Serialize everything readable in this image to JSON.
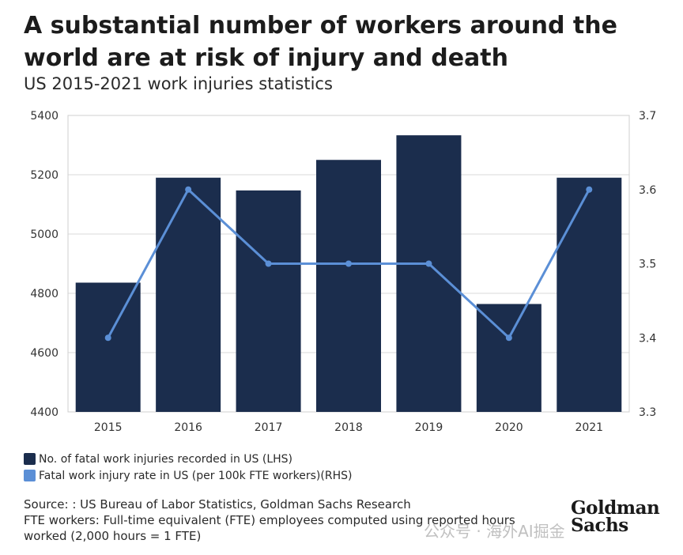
{
  "header": {
    "title": "A substantial number of workers around the world are at risk of injury and death",
    "subtitle": "US 2015-2021 work injuries statistics"
  },
  "legend": {
    "items": [
      {
        "label": "No. of fatal work injuries recorded in US (LHS)",
        "color": "#1b2d4d"
      },
      {
        "label": "Fatal work injury rate in US (per 100k FTE workers)(RHS)",
        "color": "#5b8fd6"
      }
    ]
  },
  "footer": {
    "source": "Source: : US Bureau of Labor Statistics, Goldman Sachs Research",
    "note_line1": "FTE workers: Full-time equivalent (FTE) employees computed using reported hours",
    "note_line2": "worked (2,000 hours = 1 FTE)"
  },
  "logo": {
    "line1": "Goldman",
    "line2": "Sachs"
  },
  "watermark": "公众号 · 海外AI掘金",
  "chart_data": {
    "type": "bar",
    "categories": [
      "2015",
      "2016",
      "2017",
      "2018",
      "2019",
      "2020",
      "2021"
    ],
    "series": [
      {
        "name": "No. of fatal work injuries recorded in US (LHS)",
        "type": "bar",
        "axis": "left",
        "values": [
          4836,
          5190,
          5147,
          5250,
          5333,
          4764,
          5190
        ],
        "color": "#1b2d4d"
      },
      {
        "name": "Fatal work injury rate in US (per 100k FTE workers)(RHS)",
        "type": "line",
        "axis": "right",
        "values": [
          3.4,
          3.6,
          3.5,
          3.5,
          3.5,
          3.4,
          3.6
        ],
        "color": "#5b8fd6"
      }
    ],
    "y_left": {
      "min": 4400,
      "max": 5400,
      "ticks": [
        "4400",
        "4600",
        "4800",
        "5000",
        "5200",
        "5400"
      ]
    },
    "y_right": {
      "min": 3.3,
      "max": 3.7,
      "ticks": [
        "3.3",
        "3.4",
        "3.5",
        "3.6",
        "3.7"
      ]
    },
    "grid": true
  }
}
